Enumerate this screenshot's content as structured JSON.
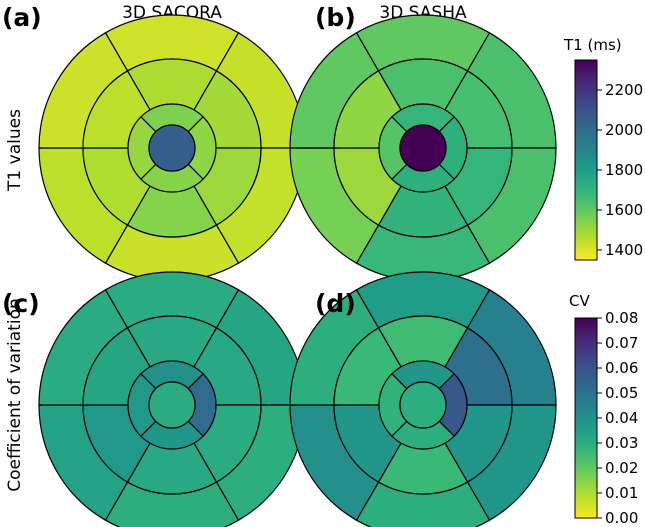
{
  "chart_data": {
    "type": "bullseye",
    "column_titles": [
      "3D SACORA",
      "3D SASHA"
    ],
    "row_titles": [
      "T1 values",
      "Coefficient of variation"
    ],
    "panels": [
      {
        "label": "(a)",
        "column": "3D SACORA",
        "row": "T1 values",
        "scale": "t1",
        "basal": [
          1420,
          1435,
          1440,
          1430,
          1450,
          1425
        ],
        "mid": [
          1475,
          1490,
          1500,
          1540,
          1470,
          1450
        ],
        "apical": [
          1550,
          1520,
          1535,
          1510
        ],
        "apex": 2050
      },
      {
        "label": "(b)",
        "column": "3D SASHA",
        "row": "T1 values",
        "scale": "t1",
        "basal": [
          1600,
          1640,
          1640,
          1680,
          1560,
          1600
        ],
        "mid": [
          1640,
          1650,
          1690,
          1700,
          1500,
          1520
        ],
        "apical": [
          1690,
          1720,
          1720,
          1620
        ],
        "apex": 2360
      },
      {
        "label": "(c)",
        "column": "3D SACORA",
        "row": "Coefficient of variation",
        "scale": "cv",
        "basal": [
          0.031,
          0.033,
          0.03,
          0.03,
          0.034,
          0.031
        ],
        "mid": [
          0.032,
          0.032,
          0.031,
          0.032,
          0.037,
          0.033
        ],
        "apical": [
          0.04,
          0.052,
          0.038,
          0.037
        ],
        "apex": 0.031
      },
      {
        "label": "(d)",
        "column": "3D SASHA",
        "row": "Coefficient of variation",
        "scale": "cv",
        "basal": [
          0.036,
          0.045,
          0.038,
          0.03,
          0.04,
          0.03
        ],
        "mid": [
          0.025,
          0.051,
          0.038,
          0.026,
          0.038,
          0.026
        ],
        "apical": [
          0.038,
          0.058,
          0.03,
          0.028
        ],
        "apex": 0.03
      }
    ],
    "colorbars": [
      {
        "key": "t1",
        "title": "T1 (ms)",
        "min": 1350,
        "max": 2350,
        "ticks": [
          1400,
          1600,
          1800,
          2000,
          2200
        ],
        "tick_labels": [
          "1400",
          "1600",
          "1800",
          "2000",
          "2200"
        ]
      },
      {
        "key": "cv",
        "title": "CV",
        "min": 0.0,
        "max": 0.08,
        "ticks": [
          0.0,
          0.01,
          0.02,
          0.03,
          0.04,
          0.05,
          0.06,
          0.07,
          0.08
        ],
        "tick_labels": [
          "0.00",
          "0.01",
          "0.02",
          "0.03",
          "0.04",
          "0.05",
          "0.06",
          "0.07",
          "0.08"
        ]
      }
    ],
    "colormap": "viridis_r"
  }
}
